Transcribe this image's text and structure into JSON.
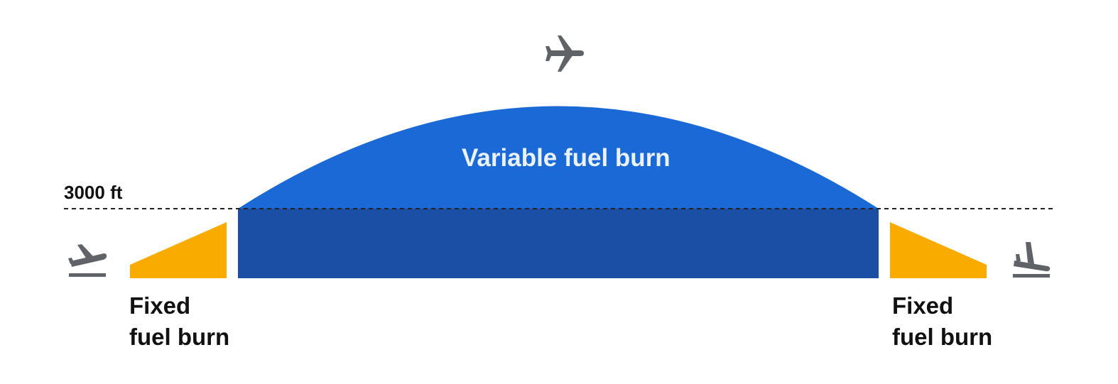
{
  "diagram": {
    "altitude_label": "3000 ft",
    "variable_label": "Variable fuel burn",
    "fixed_left": {
      "line1": "Fixed",
      "line2": "fuel burn"
    },
    "fixed_right": {
      "line1": "Fixed",
      "line2": "fuel burn"
    }
  },
  "icons": {
    "cruise": "airplane-cruise-icon",
    "takeoff": "airplane-takeoff-icon",
    "landing": "airplane-landing-icon"
  },
  "colors": {
    "variable_fill": "#1b69d6",
    "cruise_fill": "#1b4fa6",
    "fixed_fill": "#f9ab00",
    "icon_fill": "#5f6368",
    "dashed_line": "#222222"
  }
}
